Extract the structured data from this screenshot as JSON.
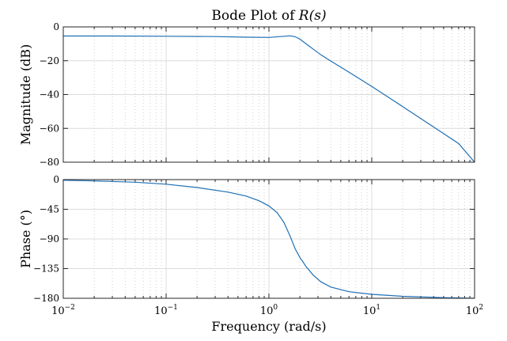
{
  "chart_data": [
    {
      "type": "line",
      "title_prefix": "Bode Plot of ",
      "title_math": "R(s)",
      "ylabel": "Magnitude (dB)",
      "xlabel": "",
      "xscale": "log",
      "xlim": [
        0.01,
        100
      ],
      "ylim": [
        -80,
        0
      ],
      "yticks": [
        0,
        -20,
        -40,
        -60,
        -80
      ],
      "ytick_labels": [
        "0",
        "−20",
        "−40",
        "−60",
        "−80"
      ],
      "grid": true,
      "series": [
        {
          "color": "#1f6fb4",
          "x": [
            0.01,
            0.03,
            0.1,
            0.3,
            0.6,
            1.0,
            1.3,
            1.6,
            1.8,
            2.0,
            2.3,
            2.7,
            3.2,
            4.0,
            5.0,
            7.0,
            10,
            20,
            30,
            50,
            70,
            100
          ],
          "y": [
            -5.4,
            -5.4,
            -5.5,
            -5.7,
            -6.1,
            -6.2,
            -5.7,
            -5.3,
            -5.8,
            -7.2,
            -10.0,
            -13.2,
            -16.5,
            -20.2,
            -23.8,
            -29.3,
            -35.2,
            -47.1,
            -54.2,
            -63.1,
            -69.0,
            -80.0
          ]
        }
      ]
    },
    {
      "type": "line",
      "ylabel": "Phase (°)",
      "xlabel": "Frequency (rad/s)",
      "xscale": "log",
      "xlim": [
        0.01,
        100
      ],
      "ylim": [
        -180,
        0
      ],
      "yticks": [
        0,
        -45,
        -90,
        -135,
        -180
      ],
      "ytick_labels": [
        "0",
        "−45",
        "−90",
        "−135",
        "−180"
      ],
      "xtick_base": "10",
      "xtick_exponents": [
        "−2",
        "−1",
        "0",
        "1",
        "2"
      ],
      "grid": true,
      "series": [
        {
          "color": "#1f6fb4",
          "x": [
            0.01,
            0.02,
            0.05,
            0.1,
            0.2,
            0.4,
            0.6,
            0.8,
            1.0,
            1.2,
            1.4,
            1.6,
            1.8,
            2.0,
            2.3,
            2.7,
            3.2,
            4.0,
            6.0,
            10,
            20,
            50,
            100
          ],
          "y": [
            -1,
            -2,
            -4,
            -7,
            -12,
            -19,
            -25,
            -32,
            -40,
            -50,
            -65,
            -85,
            -105,
            -118,
            -132,
            -145,
            -155,
            -163,
            -170,
            -174,
            -177,
            -179,
            -180
          ]
        }
      ]
    }
  ]
}
